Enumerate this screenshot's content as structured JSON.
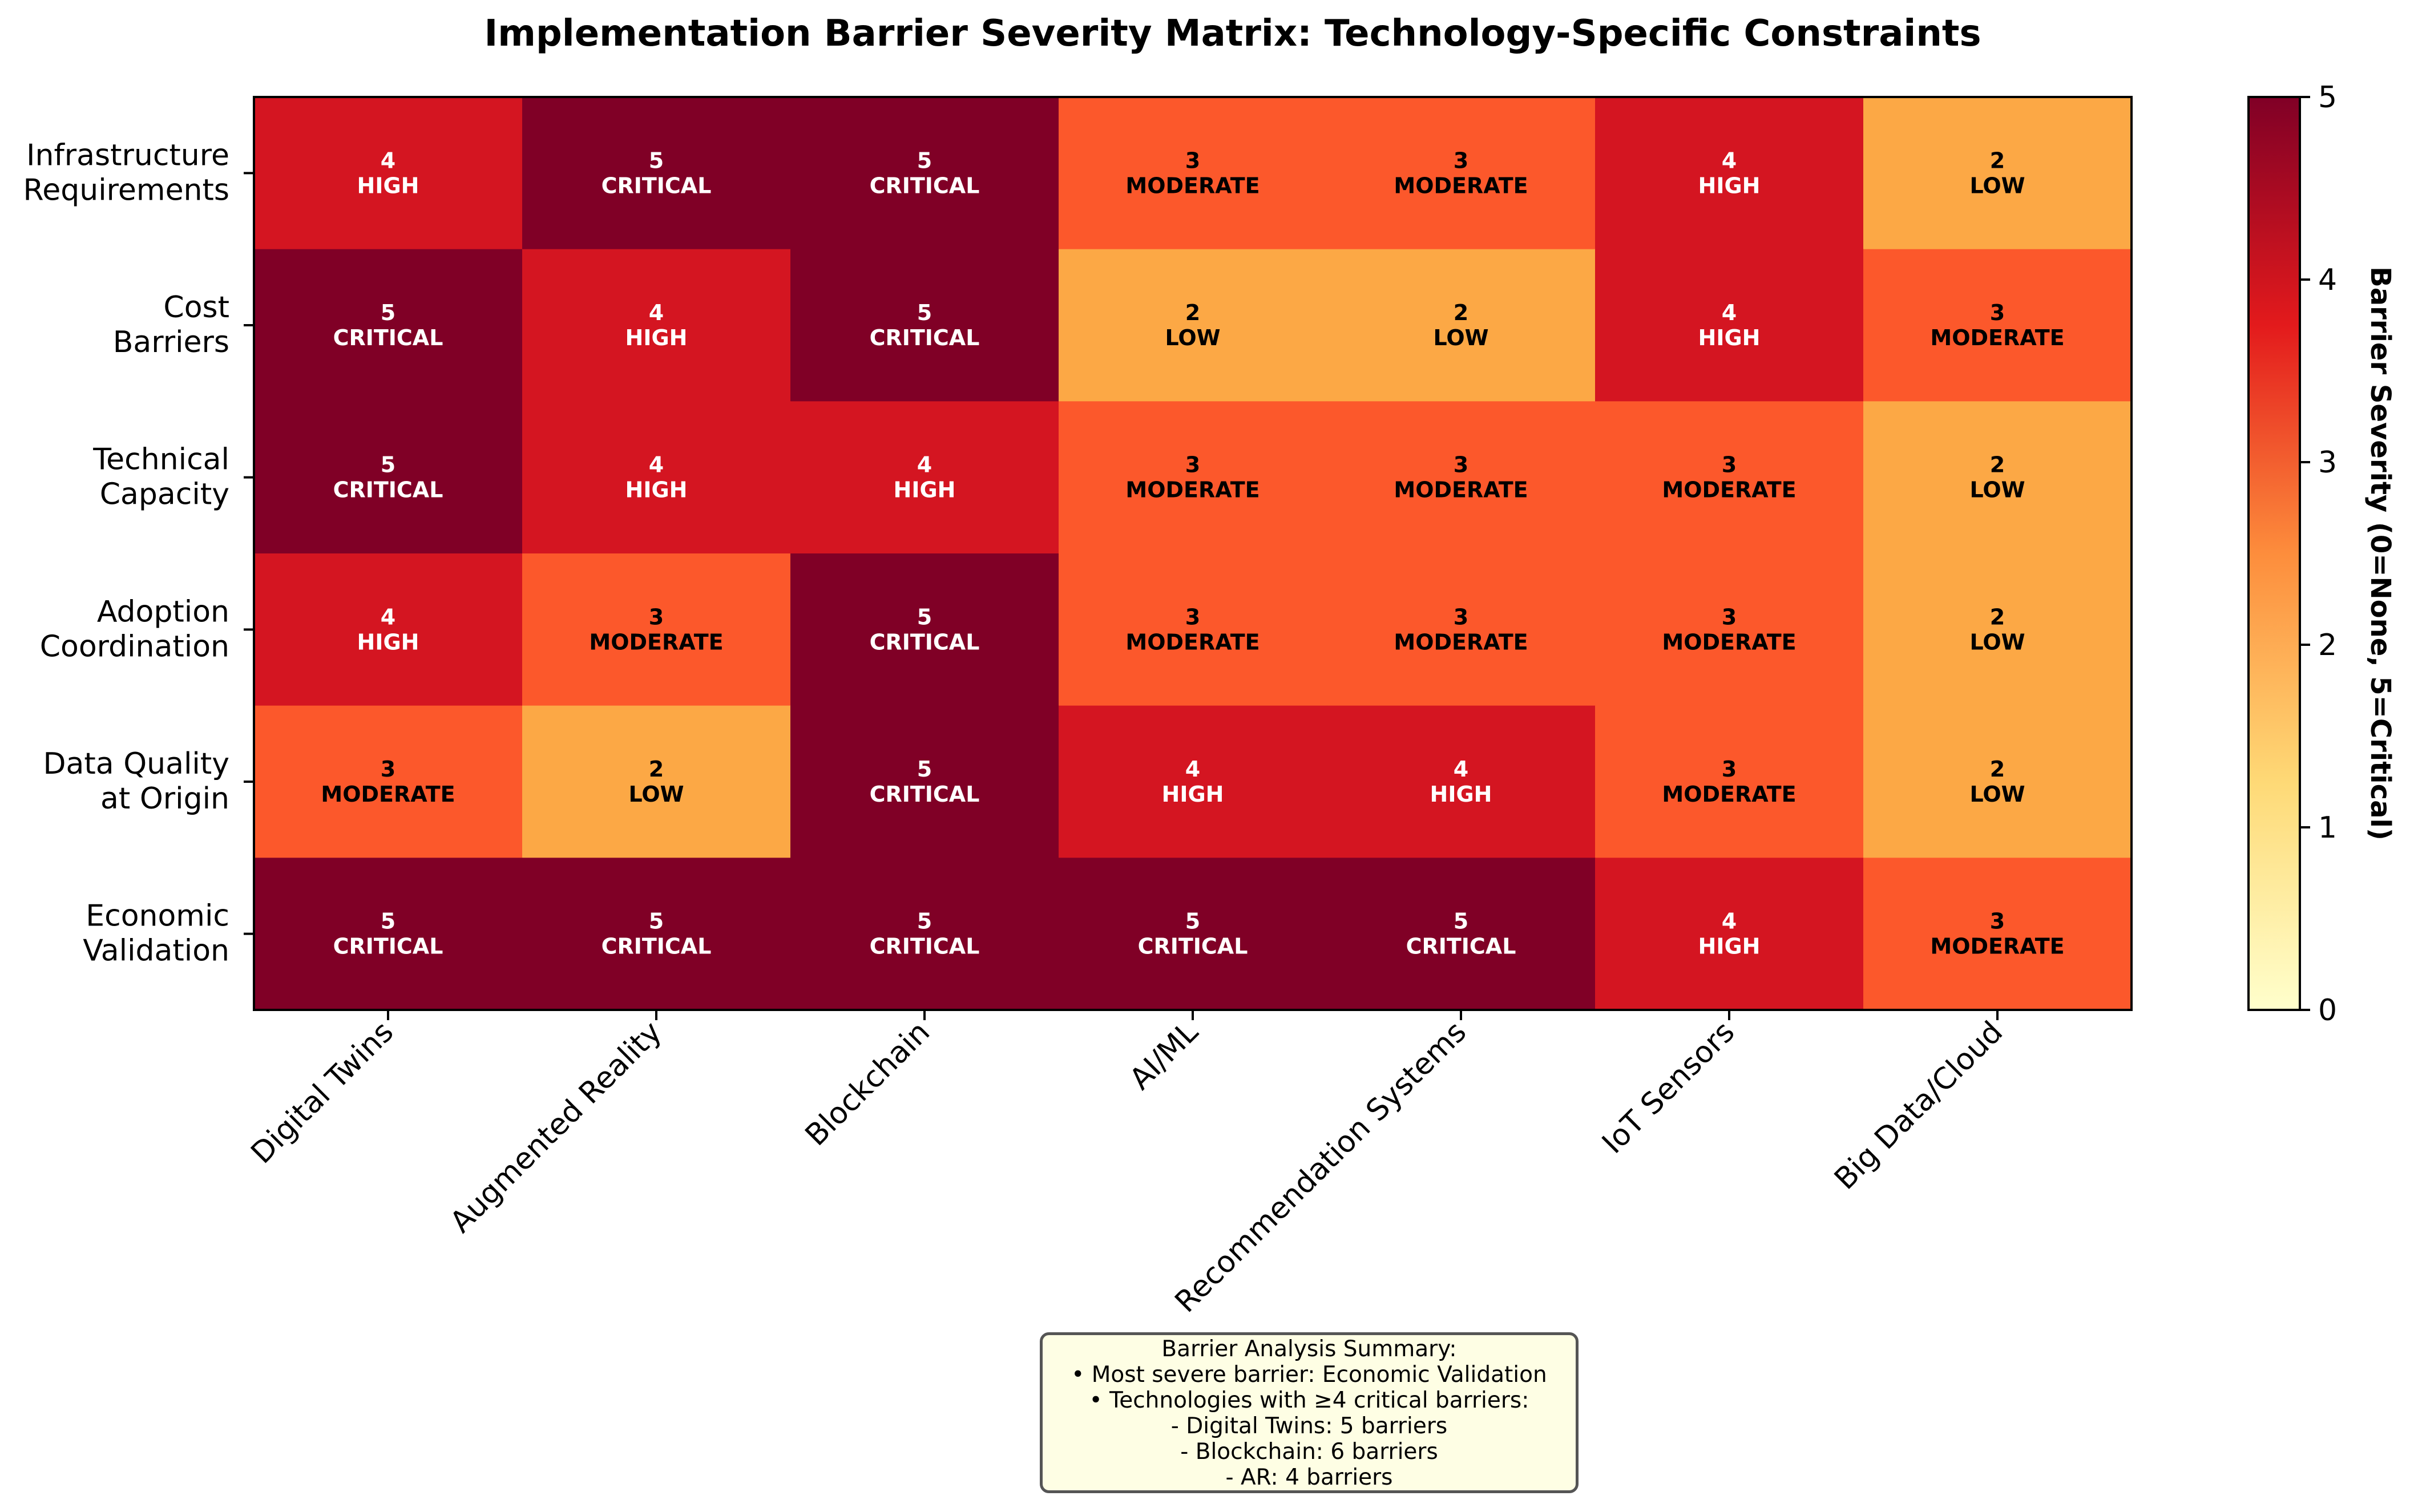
{
  "chart_data": {
    "type": "heatmap",
    "title": "Implementation Barrier Severity Matrix: Technology-Specific Constraints",
    "columns": [
      "Digital Twins",
      "Augmented Reality",
      "Blockchain",
      "AI/ML",
      "Recommendation Systems",
      "IoT Sensors",
      "Big Data/Cloud"
    ],
    "rows": [
      [
        "Infrastructure",
        "Requirements"
      ],
      [
        "Cost",
        "Barriers"
      ],
      [
        "Technical",
        "Capacity"
      ],
      [
        "Adoption",
        "Coordination"
      ],
      [
        "Data Quality",
        "at Origin"
      ],
      [
        "Economic",
        "Validation"
      ]
    ],
    "values": [
      [
        4,
        5,
        5,
        3,
        3,
        4,
        2
      ],
      [
        5,
        4,
        5,
        2,
        2,
        4,
        3
      ],
      [
        5,
        4,
        4,
        3,
        3,
        3,
        2
      ],
      [
        4,
        3,
        5,
        3,
        3,
        3,
        2
      ],
      [
        3,
        2,
        5,
        4,
        4,
        3,
        2
      ],
      [
        5,
        5,
        5,
        5,
        5,
        4,
        3
      ]
    ],
    "level_labels": {
      "2": "LOW",
      "3": "MODERATE",
      "4": "HIGH",
      "5": "CRITICAL"
    },
    "colorbar": {
      "label": "Barrier Severity (0=None, 5=Critical)",
      "range": [
        0,
        5
      ],
      "ticks": [
        "0",
        "1",
        "2",
        "3",
        "4",
        "5"
      ],
      "colormap": "YlOrRd"
    },
    "cell_colors": {
      "2": "#fca845",
      "3": "#fc582b",
      "4": "#d41521",
      "5": "#800026"
    },
    "text_colors": {
      "2": "#000000",
      "3": "#000000",
      "4": "#ffffff",
      "5": "#ffffff"
    }
  },
  "summary": {
    "lines": [
      "Barrier Analysis Summary:",
      "• Most severe barrier: Economic Validation",
      "• Technologies with ≥4 critical barriers:",
      "- Digital Twins: 5 barriers",
      "- Blockchain: 6 barriers",
      "- AR: 4 barriers"
    ]
  }
}
